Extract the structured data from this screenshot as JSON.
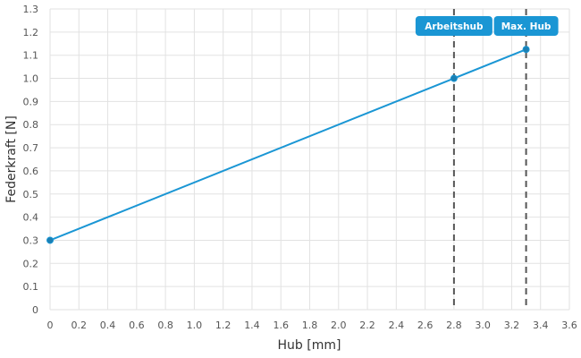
{
  "chart_data": {
    "type": "line",
    "xlabel": "Hub [mm]",
    "ylabel": "Federkraft [N]",
    "xlim": [
      0,
      3.6
    ],
    "ylim": [
      0,
      1.3
    ],
    "x_ticks": [
      "0",
      "0.2",
      "0.4",
      "0.6",
      "0.8",
      "1.0",
      "1.2",
      "1.4",
      "1.6",
      "1.8",
      "2.0",
      "2.2",
      "2.4",
      "2.6",
      "2.8",
      "3.0",
      "3.2",
      "3.4",
      "3.6"
    ],
    "y_ticks": [
      "0",
      "0.1",
      "0.2",
      "0.3",
      "0.4",
      "0.5",
      "0.6",
      "0.7",
      "0.8",
      "0.9",
      "1.0",
      "1.1",
      "1.2",
      "1.3"
    ],
    "grid": true,
    "series": [
      {
        "x": [
          0,
          2.8,
          3.3
        ],
        "y": [
          0.3,
          1.0,
          1.125
        ],
        "color": "#1a96d4"
      }
    ],
    "markers": [
      {
        "label": "Arbeitshub",
        "x": 2.8,
        "color": "#1a96d4"
      },
      {
        "label": "Max. Hub",
        "x": 3.3,
        "color": "#1a96d4"
      }
    ]
  }
}
